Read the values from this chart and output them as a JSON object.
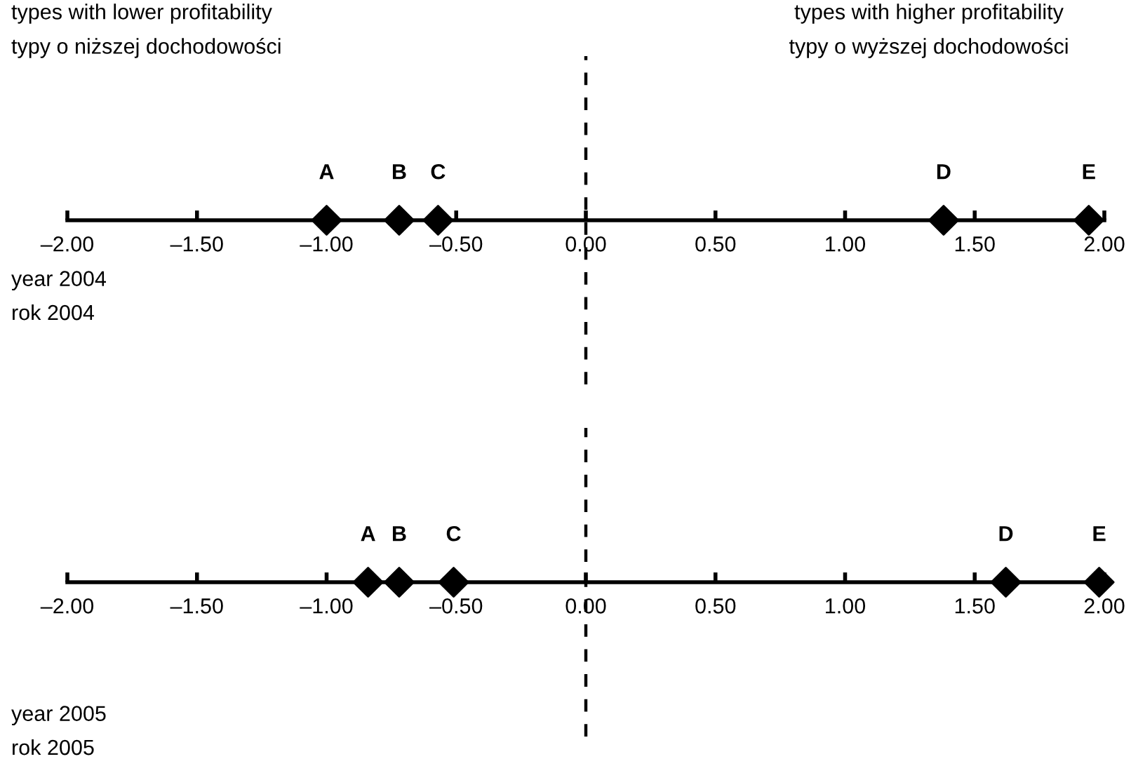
{
  "chart_data": [
    {
      "type": "scatter",
      "orientation": "horizontal",
      "marker": "diamond",
      "tick_labels": "x",
      "categories": [
        null
      ],
      "series": [
        {
          "name": "A",
          "color": "#000000",
          "values": [
            -1.0
          ]
        },
        {
          "name": "B",
          "color": "#000000",
          "values": [
            -0.72
          ]
        },
        {
          "name": "C",
          "color": "#000000",
          "values": [
            -0.57
          ]
        },
        {
          "name": "D",
          "color": "#000000",
          "values": [
            1.38
          ]
        },
        {
          "name": "E",
          "color": "#000000",
          "values": [
            1.94
          ]
        }
      ],
      "xlim": [
        -2,
        2
      ],
      "xticks": [
        {
          "value": -2,
          "label": "–2.00"
        },
        {
          "value": -1.5,
          "label": "–1.50"
        },
        {
          "value": -1,
          "label": "–1.00"
        },
        {
          "value": -0.5,
          "label": "–0.50"
        },
        {
          "value": 0,
          "label": "0.00"
        },
        {
          "value": 0.5,
          "label": "0.50"
        },
        {
          "value": 1,
          "label": "1.00"
        },
        {
          "value": 1.5,
          "label": "1.50"
        },
        {
          "value": 2,
          "label": "2.00"
        }
      ],
      "ref_lines": [
        {
          "axis": "x",
          "value": 0,
          "line_style": "dashed",
          "color": "#000000"
        }
      ],
      "annotations": [
        "types with lower profitability\ntypy o niższej dochodowości",
        "types with higher profitability\ntypy o wyższej dochodowości",
        "year 2004\nrok 2004"
      ]
    },
    {
      "type": "scatter",
      "orientation": "horizontal",
      "marker": "diamond",
      "tick_labels": "x",
      "categories": [
        null
      ],
      "series": [
        {
          "name": "A",
          "color": "#000000",
          "values": [
            -0.84
          ]
        },
        {
          "name": "B",
          "color": "#000000",
          "values": [
            -0.72
          ]
        },
        {
          "name": "C",
          "color": "#000000",
          "values": [
            -0.51
          ]
        },
        {
          "name": "D",
          "color": "#000000",
          "values": [
            1.62
          ]
        },
        {
          "name": "E",
          "color": "#000000",
          "values": [
            1.98
          ]
        }
      ],
      "xlim": [
        -2,
        2
      ],
      "xticks": [
        {
          "value": -2,
          "label": "–2.00"
        },
        {
          "value": -1.5,
          "label": "–1.50"
        },
        {
          "value": -1,
          "label": "–1.00"
        },
        {
          "value": -0.5,
          "label": "–0.50"
        },
        {
          "value": 0,
          "label": "0.00"
        },
        {
          "value": 0.5,
          "label": "0.50"
        },
        {
          "value": 1,
          "label": "1.00"
        },
        {
          "value": 1.5,
          "label": "1.50"
        },
        {
          "value": 2,
          "label": "2.00"
        }
      ],
      "ref_lines": [
        {
          "axis": "x",
          "value": 0,
          "line_style": "dashed",
          "color": "#000000"
        }
      ],
      "annotations": [
        "year 2005\nrok 2005"
      ]
    }
  ]
}
